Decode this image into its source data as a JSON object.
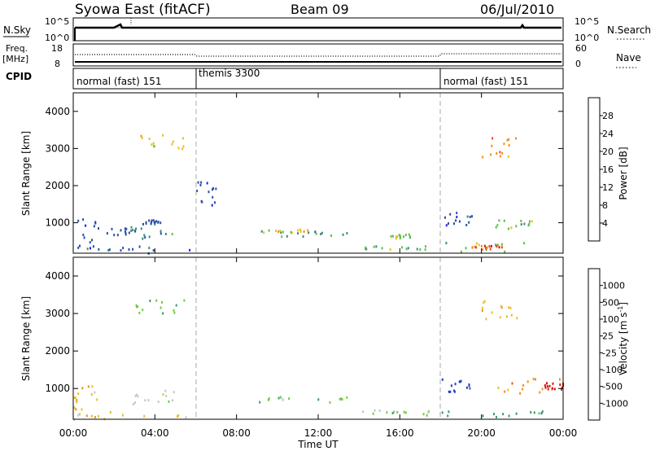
{
  "header": {
    "title": "Syowa East (fitACF)",
    "beam": "Beam 09",
    "date": "06/Jul/2010"
  },
  "status_panels": {
    "nsky_label": "N.Sky",
    "nsky_ticks": [
      "10^5",
      "10^0"
    ],
    "nsearch_label": "N.Search",
    "nsearch_ticks": [
      "10^5",
      "10^0"
    ],
    "freq_label": "Freq.",
    "freq_unit": "[MHz]",
    "freq_ticks": [
      "18",
      "8"
    ],
    "nave_label": "Nave",
    "nave_ticks": [
      "60",
      "0"
    ],
    "cpid_label": "CPID"
  },
  "modes": [
    {
      "name": "normal (fast) 151",
      "start_hour": 0
    },
    {
      "name": "themis 3300",
      "start_hour": 6
    },
    {
      "name": "normal (fast) 151",
      "start_hour": 18
    }
  ],
  "mode_boundaries_hours": [
    6,
    18
  ],
  "chart_data": [
    {
      "type": "heatmap",
      "parameter": "Power",
      "ylabel": "Slant Range [km]",
      "xlabel": "Time UT",
      "xlim": [
        0,
        24
      ],
      "ylim": [
        180,
        4500
      ],
      "x_ticks": [
        "00:00",
        "04:00",
        "08:00",
        "12:00",
        "16:00",
        "20:00",
        "00:00"
      ],
      "y_ticks": [
        1000,
        2000,
        3000,
        4000
      ],
      "colorbar": {
        "label": "Power [dB]",
        "tick_labels": [
          "4",
          "8",
          "12",
          "16",
          "20",
          "24",
          "28"
        ],
        "colors": [
          "#1a1aff",
          "#2a4fa8",
          "#3a8c7a",
          "#5cc04a",
          "#e8c020",
          "#f09020",
          "#f04818",
          "#e01010"
        ]
      },
      "regions": [
        {
          "t": [
            0.0,
            1.2
          ],
          "r": [
            200,
            1200
          ],
          "level": 1
        },
        {
          "t": [
            0.0,
            6.0
          ],
          "r": [
            200,
            420
          ],
          "level": 1
        },
        {
          "t": [
            1.5,
            3.0
          ],
          "r": [
            700,
            900
          ],
          "level": 1
        },
        {
          "t": [
            2.5,
            5.0
          ],
          "r": [
            600,
            1000
          ],
          "level": 2
        },
        {
          "t": [
            3.5,
            4.5
          ],
          "r": [
            1000,
            1100
          ],
          "level": 1
        },
        {
          "t": [
            6.0,
            7.0
          ],
          "r": [
            1300,
            2200
          ],
          "level": 1
        },
        {
          "t": [
            9.0,
            13.5
          ],
          "r": [
            650,
            800
          ],
          "level": 2
        },
        {
          "t": [
            9.0,
            11.5
          ],
          "r": [
            750,
            850
          ],
          "level": 4
        },
        {
          "t": [
            14.0,
            17.5
          ],
          "r": [
            300,
            420
          ],
          "level": 3
        },
        {
          "t": [
            15.5,
            16.5
          ],
          "r": [
            600,
            720
          ],
          "level": 3
        },
        {
          "t": [
            18.0,
            23.8
          ],
          "r": [
            250,
            500
          ],
          "level": 3
        },
        {
          "t": [
            19.5,
            21.0
          ],
          "r": [
            300,
            420
          ],
          "level": 6
        },
        {
          "t": [
            18.0,
            19.5
          ],
          "r": [
            900,
            1300
          ],
          "level": 1
        },
        {
          "t": [
            20.5,
            22.5
          ],
          "r": [
            700,
            1100
          ],
          "level": 3
        },
        {
          "t": [
            3.0,
            5.5
          ],
          "r": [
            3000,
            3400
          ],
          "level": 4
        },
        {
          "t": [
            20.0,
            21.8
          ],
          "r": [
            2800,
            3400
          ],
          "level": 5
        }
      ]
    },
    {
      "type": "heatmap",
      "parameter": "Velocity",
      "ylabel": "Slant Range [km]",
      "xlabel": "Time UT",
      "xlim": [
        0,
        24
      ],
      "ylim": [
        180,
        4500
      ],
      "x_ticks": [
        "00:00",
        "04:00",
        "08:00",
        "12:00",
        "16:00",
        "20:00",
        "00:00"
      ],
      "y_ticks": [
        1000,
        2000,
        3000,
        4000
      ],
      "colorbar": {
        "label": "Velocity [m s",
        "label_superscript": "-1",
        "label_suffix": "]",
        "tick_labels": [
          "1000",
          "500",
          "100",
          "25",
          "-25",
          "-100",
          "-500",
          "-1000"
        ],
        "colors": [
          "#2040c0",
          "#3a6ab0",
          "#3a9a70",
          "#70cc40",
          "#c8c8c8",
          "#e8c028",
          "#f09028",
          "#f05020",
          "#e01010"
        ]
      },
      "regions": [
        {
          "t": [
            0.0,
            1.2
          ],
          "r": [
            200,
            1200
          ],
          "level": 5
        },
        {
          "t": [
            0.0,
            6.0
          ],
          "r": [
            200,
            420
          ],
          "level": 5
        },
        {
          "t": [
            2.5,
            5.0
          ],
          "r": [
            600,
            1000
          ],
          "level": 4
        },
        {
          "t": [
            9.0,
            13.5
          ],
          "r": [
            650,
            800
          ],
          "level": 3
        },
        {
          "t": [
            14.0,
            17.5
          ],
          "r": [
            300,
            450
          ],
          "level": 3
        },
        {
          "t": [
            18.0,
            23.8
          ],
          "r": [
            250,
            500
          ],
          "level": 2
        },
        {
          "t": [
            18.0,
            19.5
          ],
          "r": [
            900,
            1300
          ],
          "level": 0
        },
        {
          "t": [
            20.5,
            23.9
          ],
          "r": [
            900,
            1300
          ],
          "level": 6
        },
        {
          "t": [
            23.0,
            24.0
          ],
          "r": [
            1000,
            1200
          ],
          "level": 8
        },
        {
          "t": [
            3.0,
            5.5
          ],
          "r": [
            3000,
            3400
          ],
          "level": 3
        },
        {
          "t": [
            20.0,
            21.8
          ],
          "r": [
            2800,
            3400
          ],
          "level": 5
        }
      ]
    }
  ]
}
